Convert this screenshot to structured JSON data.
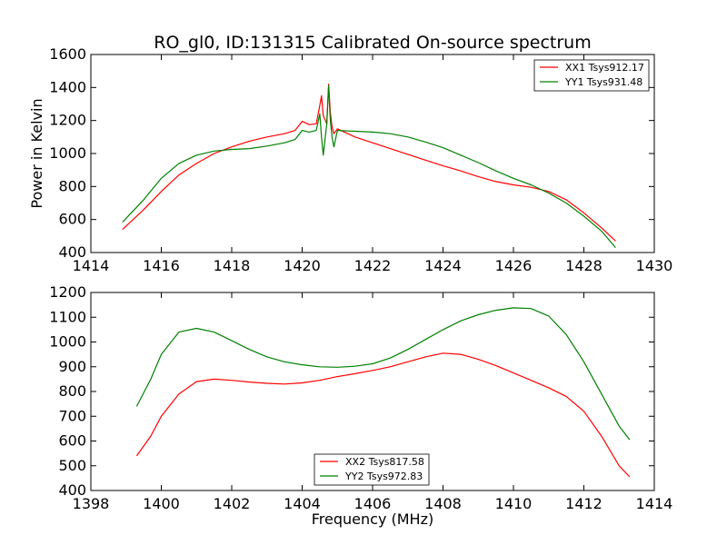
{
  "figure": {
    "title": "RO_gl0, ID:131315 Calibrated On-source spectrum",
    "ylabel": "Power in Kelvin",
    "xlabel": "Frequency (MHz)"
  },
  "chart_data": [
    {
      "type": "line",
      "title": "RO_gl0, ID:131315 Calibrated On-source spectrum",
      "xlabel": "",
      "ylabel": "Power in Kelvin",
      "xlim": [
        1414,
        1430
      ],
      "ylim": [
        400,
        1600
      ],
      "xticks": [
        1414,
        1416,
        1418,
        1420,
        1422,
        1424,
        1426,
        1428,
        1430
      ],
      "yticks": [
        400,
        600,
        800,
        1000,
        1200,
        1400,
        1600
      ],
      "grid": false,
      "legend_position": "upper-right",
      "series": [
        {
          "name": "XX1 Tsys912.17",
          "color": "#ff0000",
          "points": [
            [
              1414.9,
              540
            ],
            [
              1415.5,
              660
            ],
            [
              1416,
              770
            ],
            [
              1416.5,
              870
            ],
            [
              1417,
              940
            ],
            [
              1417.5,
              1000
            ],
            [
              1418,
              1040
            ],
            [
              1418.5,
              1075
            ],
            [
              1419,
              1100
            ],
            [
              1419.5,
              1120
            ],
            [
              1419.8,
              1140
            ],
            [
              1420,
              1195
            ],
            [
              1420.2,
              1175
            ],
            [
              1420.4,
              1180
            ],
            [
              1420.5,
              1290
            ],
            [
              1420.55,
              1350
            ],
            [
              1420.6,
              1230
            ],
            [
              1420.7,
              1180
            ],
            [
              1420.75,
              1420
            ],
            [
              1420.8,
              1250
            ],
            [
              1420.85,
              1160
            ],
            [
              1420.9,
              1120
            ],
            [
              1421,
              1150
            ],
            [
              1421.5,
              1100
            ],
            [
              1422,
              1065
            ],
            [
              1422.5,
              1030
            ],
            [
              1423,
              995
            ],
            [
              1423.5,
              960
            ],
            [
              1424,
              925
            ],
            [
              1424.5,
              895
            ],
            [
              1425,
              860
            ],
            [
              1425.5,
              830
            ],
            [
              1426,
              810
            ],
            [
              1426.5,
              795
            ],
            [
              1427,
              770
            ],
            [
              1427.5,
              720
            ],
            [
              1428,
              640
            ],
            [
              1428.5,
              550
            ],
            [
              1428.9,
              470
            ]
          ]
        },
        {
          "name": "YY1 Tsys931.48",
          "color": "#008000",
          "points": [
            [
              1414.9,
              585
            ],
            [
              1415.5,
              720
            ],
            [
              1416,
              850
            ],
            [
              1416.5,
              940
            ],
            [
              1417,
              990
            ],
            [
              1417.5,
              1015
            ],
            [
              1418,
              1025
            ],
            [
              1418.5,
              1030
            ],
            [
              1419,
              1045
            ],
            [
              1419.5,
              1065
            ],
            [
              1419.8,
              1085
            ],
            [
              1420,
              1140
            ],
            [
              1420.2,
              1130
            ],
            [
              1420.4,
              1140
            ],
            [
              1420.5,
              1240
            ],
            [
              1420.55,
              1100
            ],
            [
              1420.6,
              990
            ],
            [
              1420.7,
              1180
            ],
            [
              1420.75,
              1410
            ],
            [
              1420.8,
              1200
            ],
            [
              1420.85,
              1100
            ],
            [
              1420.9,
              1040
            ],
            [
              1421,
              1140
            ],
            [
              1421.5,
              1135
            ],
            [
              1422,
              1130
            ],
            [
              1422.5,
              1120
            ],
            [
              1423,
              1100
            ],
            [
              1423.5,
              1070
            ],
            [
              1424,
              1035
            ],
            [
              1424.5,
              990
            ],
            [
              1425,
              945
            ],
            [
              1425.5,
              895
            ],
            [
              1426,
              850
            ],
            [
              1426.5,
              810
            ],
            [
              1427,
              760
            ],
            [
              1427.5,
              700
            ],
            [
              1428,
              620
            ],
            [
              1428.5,
              530
            ],
            [
              1428.9,
              430
            ]
          ]
        }
      ]
    },
    {
      "type": "line",
      "title": "",
      "xlabel": "Frequency (MHz)",
      "ylabel": "",
      "xlim": [
        1398,
        1414
      ],
      "ylim": [
        400,
        1200
      ],
      "xticks": [
        1398,
        1400,
        1402,
        1404,
        1406,
        1408,
        1410,
        1412,
        1414
      ],
      "yticks": [
        400,
        500,
        600,
        700,
        800,
        900,
        1000,
        1100,
        1200
      ],
      "grid": false,
      "legend_position": "lower-center",
      "series": [
        {
          "name": "XX2 Tsys817.58",
          "color": "#ff0000",
          "points": [
            [
              1399.3,
              540
            ],
            [
              1399.7,
              620
            ],
            [
              1400,
              700
            ],
            [
              1400.5,
              790
            ],
            [
              1401,
              840
            ],
            [
              1401.5,
              850
            ],
            [
              1402,
              845
            ],
            [
              1402.5,
              838
            ],
            [
              1403,
              833
            ],
            [
              1403.5,
              830
            ],
            [
              1404,
              835
            ],
            [
              1404.5,
              845
            ],
            [
              1405,
              860
            ],
            [
              1405.5,
              872
            ],
            [
              1406,
              885
            ],
            [
              1406.5,
              900
            ],
            [
              1407,
              920
            ],
            [
              1407.5,
              940
            ],
            [
              1408,
              955
            ],
            [
              1408.5,
              950
            ],
            [
              1409,
              930
            ],
            [
              1409.5,
              905
            ],
            [
              1410,
              875
            ],
            [
              1410.5,
              845
            ],
            [
              1411,
              815
            ],
            [
              1411.5,
              780
            ],
            [
              1412,
              720
            ],
            [
              1412.5,
              620
            ],
            [
              1413,
              500
            ],
            [
              1413.3,
              455
            ]
          ]
        },
        {
          "name": "YY2 Tsys972.83",
          "color": "#008000",
          "points": [
            [
              1399.3,
              740
            ],
            [
              1399.7,
              850
            ],
            [
              1400,
              950
            ],
            [
              1400.5,
              1040
            ],
            [
              1401,
              1055
            ],
            [
              1401.5,
              1040
            ],
            [
              1402,
              1005
            ],
            [
              1402.5,
              970
            ],
            [
              1403,
              940
            ],
            [
              1403.5,
              920
            ],
            [
              1404,
              908
            ],
            [
              1404.5,
              900
            ],
            [
              1405,
              898
            ],
            [
              1405.5,
              902
            ],
            [
              1406,
              912
            ],
            [
              1406.5,
              935
            ],
            [
              1407,
              970
            ],
            [
              1407.5,
              1010
            ],
            [
              1408,
              1050
            ],
            [
              1408.5,
              1085
            ],
            [
              1409,
              1110
            ],
            [
              1409.5,
              1128
            ],
            [
              1410,
              1138
            ],
            [
              1410.5,
              1135
            ],
            [
              1411,
              1105
            ],
            [
              1411.5,
              1030
            ],
            [
              1412,
              920
            ],
            [
              1412.5,
              790
            ],
            [
              1413,
              660
            ],
            [
              1413.3,
              605
            ]
          ]
        }
      ]
    }
  ]
}
